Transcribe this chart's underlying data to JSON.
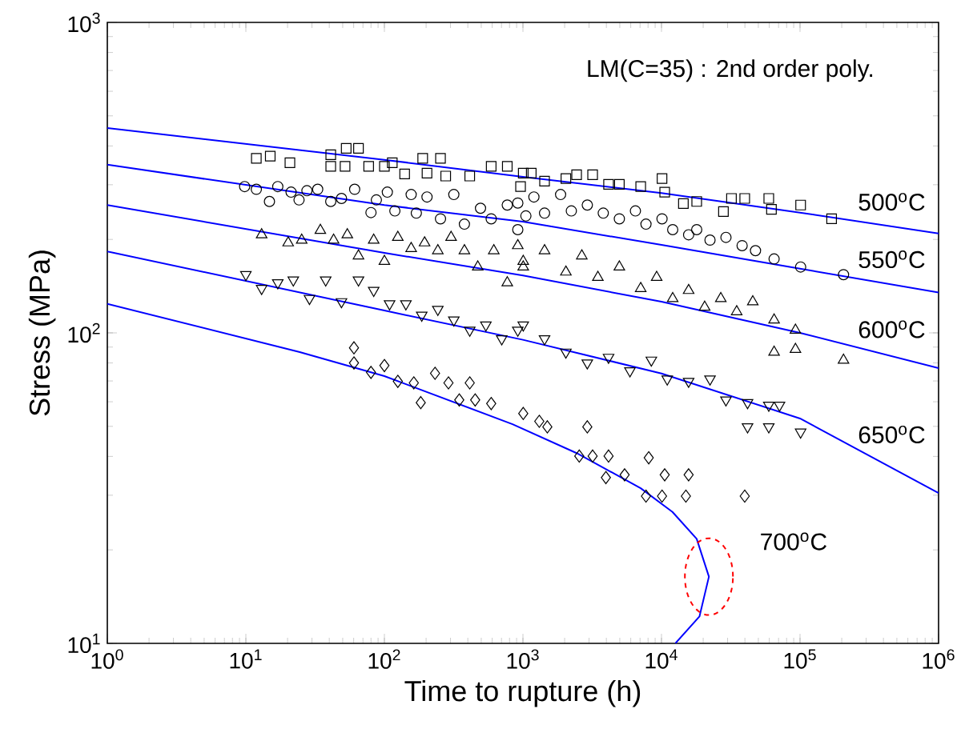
{
  "chart_data": {
    "type": "scatter",
    "xlabel": "Time to rupture (h)",
    "ylabel": "Stress (MPa)",
    "log": "xy",
    "xlim": [
      1,
      1000000
    ],
    "ylim": [
      10,
      1000
    ],
    "xticks": [
      {
        "value": 1,
        "label": "10$^{0}$"
      },
      {
        "value": 10,
        "label": "10$^{1}$"
      },
      {
        "value": 100,
        "label": "10$^{2}$"
      },
      {
        "value": 1000,
        "label": "10$^{3}$"
      },
      {
        "value": 10000,
        "label": "10$^{4}$"
      },
      {
        "value": 100000,
        "label": "10$^{5}$"
      },
      {
        "value": 1000000,
        "label": "10$^{6}$"
      }
    ],
    "yticks": [
      {
        "value": 10,
        "label": "10$^{1}$"
      },
      {
        "value": 100,
        "label": "10$^{2}$"
      },
      {
        "value": 1000,
        "label": "10$^{3}$"
      }
    ],
    "series": [
      {
        "marker": "square",
        "color": "#000000",
        "x": [
          11.9,
          15,
          20.8,
          41,
          53,
          65,
          41,
          52,
          77,
          114,
          140,
          189,
          254,
          203,
          277,
          413,
          590,
          771,
          1005,
          961,
          100,
          1148,
          1432,
          2042,
          2440,
          3184,
          4150,
          4965,
          7080,
          10090,
          10550,
          14390,
          17960,
          28000,
          32000,
          39900,
          59500,
          62200,
          101000,
          169000
        ],
        "values": [
          365,
          371,
          353,
          375,
          393,
          393,
          344,
          344,
          344,
          353,
          325,
          365,
          365,
          327,
          320,
          320,
          344,
          344,
          327,
          296,
          344,
          327,
          308,
          314,
          323,
          323,
          301,
          301,
          296,
          314,
          284,
          261,
          265,
          246,
          271,
          271,
          271,
          250,
          258,
          233
        ]
      },
      {
        "marker": "circle",
        "color": "#000000",
        "x": [
          9.8,
          11.9,
          14.8,
          17,
          21.2,
          24.2,
          27.6,
          33,
          41,
          49,
          61,
          80,
          87.5,
          105,
          119,
          156,
          170,
          203,
          254,
          317,
          378,
          494,
          590,
          771,
          918,
          1050,
          918,
          1200,
          1432,
          1870,
          2235,
          2915,
          3800,
          4965,
          6485,
          7730,
          10090,
          12050,
          15700,
          17960,
          22400,
          29200,
          38200,
          47700,
          65000,
          101000,
          206000
        ],
        "values": [
          296,
          290,
          265,
          296,
          284,
          268,
          287,
          290,
          265,
          271,
          290,
          244,
          268,
          284,
          247,
          279,
          243,
          274,
          233,
          279,
          224,
          252,
          233,
          258,
          215,
          238,
          262,
          274,
          243,
          279,
          247,
          258,
          243,
          233,
          247,
          224,
          233,
          215,
          207,
          215,
          199,
          203,
          191,
          184,
          173,
          163,
          154
        ]
      },
      {
        "marker": "triangle",
        "color": "#000000",
        "x": [
          13,
          20.2,
          25.3,
          34.5,
          43,
          54,
          65,
          83.7,
          100,
          125,
          156,
          195,
          243,
          303,
          378,
          472,
          616,
          771,
          918,
          1005,
          1005,
          1432,
          2042,
          2660,
          3475,
          4965,
          7080,
          9230,
          12050,
          15700,
          20500,
          26800,
          34900,
          45600,
          65000,
          92700,
          65000,
          92700,
          206000
        ],
        "values": [
          207,
          195,
          199,
          214,
          199,
          207,
          177,
          199,
          170,
          203,
          187,
          195,
          184,
          203,
          184,
          163,
          184,
          145,
          191,
          163,
          170,
          184,
          157,
          177,
          151,
          163,
          139,
          151,
          129,
          137,
          121,
          129,
          117,
          126,
          110,
          102,
          86.7,
          88.5,
          81.7
        ]
      },
      {
        "marker": "triangle-down",
        "color": "#000000",
        "x": [
          10,
          13,
          17,
          22,
          28.8,
          37.7,
          49,
          65,
          83.7,
          109,
          143,
          186,
          243,
          317,
          413,
          540,
          703,
          918,
          1005,
          1432,
          2042,
          2915,
          4150,
          5920,
          8450,
          11000,
          15700,
          22400,
          29200,
          41800,
          59500,
          41800,
          59500,
          71100,
          101000
        ],
        "values": [
          154,
          139,
          145,
          148,
          129,
          148,
          126,
          148,
          137,
          124,
          124,
          114,
          119,
          110,
          102,
          106,
          95.7,
          102,
          106,
          95.7,
          86.7,
          80,
          83.4,
          75.5,
          81.7,
          71,
          69.8,
          71,
          60.8,
          59.6,
          58.5,
          49.8,
          49.8,
          58.5,
          47.9
        ]
      },
      {
        "marker": "diamond",
        "color": "#000000",
        "x": [
          60.3,
          60.3,
          80,
          100,
          125,
          163,
          183,
          232,
          290,
          347,
          413,
          452,
          590,
          1005,
          1312,
          1500,
          2915,
          2550,
          3184,
          4150,
          3970,
          5420,
          8090,
          7730,
          10550,
          10090,
          15700,
          15000,
          39900
        ],
        "values": [
          89.5,
          80,
          74.6,
          78.5,
          69.8,
          69,
          59.6,
          74.1,
          69,
          60.8,
          69,
          60.8,
          59.2,
          55,
          51.9,
          49.8,
          49.8,
          40.1,
          40.1,
          40.1,
          34.2,
          34.9,
          39.6,
          29.8,
          34.9,
          29.8,
          34.9,
          29.8,
          29.8
        ]
      },
      {
        "type": "line",
        "name": "500$^{o}$C",
        "marker": "none",
        "color": "#0000ff",
        "x": [
          1,
          100,
          1000,
          10000,
          100000,
          1000000
        ],
        "values": [
          457,
          361,
          318,
          282,
          244,
          209
        ]
      },
      {
        "type": "line",
        "name": "550$^{o}$C",
        "marker": "none",
        "color": "#0000ff",
        "x": [
          1,
          100,
          1000,
          10000,
          100000,
          1000000
        ],
        "values": [
          348,
          258,
          228,
          192,
          161,
          135
        ]
      },
      {
        "type": "line",
        "name": "600$^{o}$C",
        "marker": "none",
        "color": "#0000ff",
        "x": [
          1,
          100,
          1000,
          10000,
          100000,
          1000000
        ],
        "values": [
          258,
          181,
          153,
          126,
          100,
          77
        ]
      },
      {
        "type": "line",
        "name": "650$^{o}$C",
        "marker": "none",
        "color": "#0000ff",
        "x": [
          1,
          100,
          1000,
          10000,
          100000,
          1000000
        ],
        "values": [
          183,
          118,
          95,
          74,
          53,
          30.5
        ]
      },
      {
        "type": "line",
        "name": "700$^{o}$C",
        "marker": "none",
        "color": "#0000ff",
        "x": [
          1,
          24.5,
          100,
          841,
          2440,
          7080,
          12000,
          17950,
          22000,
          18800,
          12600
        ],
        "values": [
          124,
          86.7,
          72.6,
          50.8,
          41,
          31.6,
          26.5,
          21.7,
          16.4,
          12.2,
          10
        ]
      }
    ],
    "annotations": [
      "LM(C=35) : 2nd order poly."
    ]
  }
}
